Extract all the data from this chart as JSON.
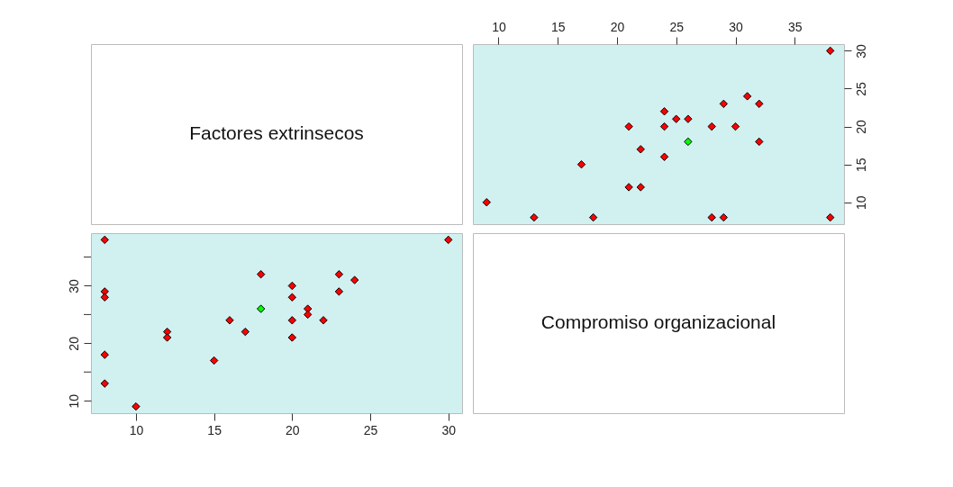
{
  "chart_data": [
    {
      "type": "other",
      "annotations": [
        "Factores extrinsecos"
      ]
    },
    {
      "type": "scatter",
      "marker": "diamond",
      "grid": false,
      "xlim": [
        7.84,
        39.16
      ],
      "xticks": [
        10,
        15,
        20,
        25,
        30,
        35
      ],
      "ylim": [
        7.12,
        30.88
      ],
      "yticks": [
        10,
        15,
        20,
        25,
        30
      ],
      "series": [
        {
          "color": "#ff0000",
          "x": [
            38,
            29,
            28,
            18,
            13,
            9,
            22,
            21,
            17,
            24,
            22,
            32,
            30,
            28,
            24,
            21,
            26,
            25,
            24,
            32,
            29,
            31,
            38
          ],
          "values": [
            8,
            8,
            8,
            8,
            8,
            10,
            12,
            12,
            15,
            16,
            17,
            18,
            20,
            20,
            20,
            20,
            21,
            21,
            22,
            23,
            23,
            24,
            30
          ]
        },
        {
          "color": "#00ff00",
          "x": [
            26
          ],
          "values": [
            18
          ]
        }
      ]
    },
    {
      "type": "scatter",
      "marker": "diamond",
      "grid": false,
      "xlim": [
        7.12,
        30.88
      ],
      "xticks": [
        10,
        15,
        20,
        25,
        30
      ],
      "ylim": [
        7.84,
        39.16
      ],
      "yticks": [
        10,
        {
          "value": 15,
          "label": null
        },
        20,
        {
          "value": 25,
          "label": null
        },
        30,
        {
          "value": 35,
          "label": null
        }
      ],
      "series": [
        {
          "color": "#ff0000",
          "x": [
            8,
            8,
            8,
            8,
            8,
            10,
            12,
            12,
            15,
            16,
            17,
            18,
            20,
            20,
            20,
            20,
            21,
            21,
            22,
            23,
            23,
            24,
            30
          ],
          "values": [
            38,
            29,
            28,
            18,
            13,
            9,
            22,
            21,
            17,
            24,
            22,
            32,
            30,
            28,
            24,
            21,
            26,
            25,
            24,
            32,
            29,
            31,
            38
          ]
        },
        {
          "color": "#00ff00",
          "x": [
            18
          ],
          "values": [
            26
          ]
        }
      ]
    },
    {
      "type": "other",
      "annotations": [
        "Compromiso organizacional"
      ]
    }
  ]
}
